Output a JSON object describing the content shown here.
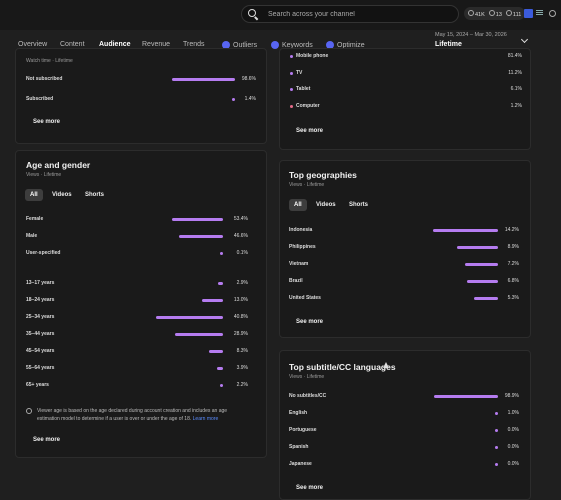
{
  "search": {
    "placeholder": "Search across your channel"
  },
  "stats": [
    {
      "icon": "clock-icon",
      "value": "41K"
    },
    {
      "icon": "eye-icon",
      "value": "13"
    },
    {
      "icon": "subscribers-icon",
      "value": "111"
    }
  ],
  "tabs": [
    {
      "label": "Overview"
    },
    {
      "label": "Content"
    },
    {
      "label": "Audience"
    },
    {
      "label": "Revenue"
    },
    {
      "label": "Trends"
    },
    {
      "label": "Outliers"
    },
    {
      "label": "Keywords"
    },
    {
      "label": "Optimize"
    }
  ],
  "date": {
    "range": "May 15, 2024 – Mar 30, 2026",
    "value": "Lifetime"
  },
  "subscription": {
    "subtitle": "Watch time · Lifetime",
    "rows": [
      {
        "label": "Not subscribed",
        "pct": 98.6,
        "value": "98.6%"
      },
      {
        "label": "Subscribed",
        "pct": 1.4,
        "value": "1.4%"
      }
    ],
    "see_more": "See more"
  },
  "devices": {
    "rows": [
      {
        "label": "Mobile phone",
        "value": "81.4%",
        "color": "#b57cf0"
      },
      {
        "label": "TV",
        "value": "11.2%",
        "color": "#b57cf0"
      },
      {
        "label": "Tablet",
        "value": "6.1%",
        "color": "#b57cf0"
      },
      {
        "label": "Computer",
        "value": "1.2%",
        "color": "#e56b8a"
      }
    ],
    "see_more": "See more"
  },
  "age_gender": {
    "title": "Age and gender",
    "subtitle": "Views · Lifetime",
    "filters": [
      "All",
      "Videos",
      "Shorts"
    ],
    "gender": [
      {
        "label": "Female",
        "pct": 53.4,
        "value": "53.4%"
      },
      {
        "label": "Male",
        "pct": 46.6,
        "value": "46.6%"
      },
      {
        "label": "User-specified",
        "pct": 0.1,
        "value": "0.1%"
      }
    ],
    "age": [
      {
        "label": "13–17 years",
        "pct": 2.9,
        "value": "2.9%"
      },
      {
        "label": "18–24 years",
        "pct": 13.0,
        "value": "13.0%"
      },
      {
        "label": "25–34 years",
        "pct": 40.8,
        "value": "40.8%"
      },
      {
        "label": "35–44 years",
        "pct": 28.9,
        "value": "28.9%"
      },
      {
        "label": "45–54 years",
        "pct": 8.3,
        "value": "8.3%"
      },
      {
        "label": "55–64 years",
        "pct": 3.9,
        "value": "3.9%"
      },
      {
        "label": "65+ years",
        "pct": 2.2,
        "value": "2.2%"
      }
    ],
    "note": "Viewer age is based on the age declared during account creation and includes an age estimation model to determine if a user is over or under the age of 18.",
    "note_link": "Learn more",
    "see_more": "See more"
  },
  "geographies": {
    "title": "Top geographies",
    "subtitle": "Views · Lifetime",
    "filters": [
      "All",
      "Videos",
      "Shorts"
    ],
    "rows": [
      {
        "label": "Indonesia",
        "pct": 14.2,
        "value": "14.2%"
      },
      {
        "label": "Philippines",
        "pct": 8.9,
        "value": "8.9%"
      },
      {
        "label": "Vietnam",
        "pct": 7.2,
        "value": "7.2%"
      },
      {
        "label": "Brazil",
        "pct": 6.8,
        "value": "6.8%"
      },
      {
        "label": "United States",
        "pct": 5.3,
        "value": "5.3%"
      }
    ],
    "see_more": "See more"
  },
  "subtitles": {
    "title": "Top subtitle/CC languages",
    "subtitle": "Views · Lifetime",
    "rows": [
      {
        "label": "No subtitles/CC",
        "pct": 98.9,
        "value": "98.9%"
      },
      {
        "label": "English",
        "pct": 1.0,
        "value": "1.0%"
      },
      {
        "label": "Portuguese",
        "pct": 0.0,
        "value": "0.0%"
      },
      {
        "label": "Spanish",
        "pct": 0.0,
        "value": "0.0%"
      },
      {
        "label": "Japanese",
        "pct": 0.0,
        "value": "0.0%"
      }
    ],
    "see_more": "See more"
  }
}
